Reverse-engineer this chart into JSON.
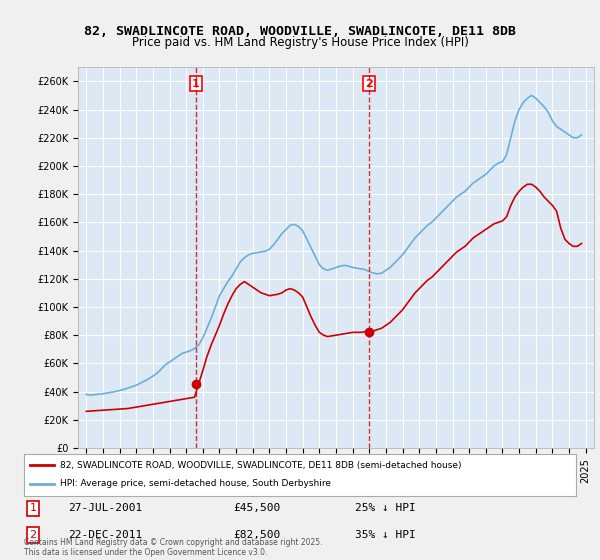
{
  "title": "82, SWADLINCOTE ROAD, WOODVILLE, SWADLINCOTE, DE11 8DB",
  "subtitle": "Price paid vs. HM Land Registry's House Price Index (HPI)",
  "bg_color": "#dce9f5",
  "plot_bg_color": "#dce9f5",
  "grid_color": "#ffffff",
  "hpi_color": "#6baed6",
  "price_color": "#cc0000",
  "marker_color": "#cc0000",
  "ylim": [
    0,
    270000
  ],
  "yticks": [
    0,
    20000,
    40000,
    60000,
    80000,
    100000,
    120000,
    140000,
    160000,
    180000,
    200000,
    220000,
    240000,
    260000
  ],
  "xlim_start": 1994.5,
  "xlim_end": 2025.5,
  "xticks": [
    1995,
    1996,
    1997,
    1998,
    1999,
    2000,
    2001,
    2002,
    2003,
    2004,
    2005,
    2006,
    2007,
    2008,
    2009,
    2010,
    2011,
    2012,
    2013,
    2014,
    2015,
    2016,
    2017,
    2018,
    2019,
    2020,
    2021,
    2022,
    2023,
    2024,
    2025
  ],
  "transaction1": {
    "date": "27-JUL-2001",
    "price": 45500,
    "label": "1",
    "x": 2001.57,
    "hpi_pct": "25% ↓ HPI"
  },
  "transaction2": {
    "date": "22-DEC-2011",
    "price": 82500,
    "label": "2",
    "x": 2011.98,
    "hpi_pct": "35% ↓ HPI"
  },
  "legend_line1": "82, SWADLINCOTE ROAD, WOODVILLE, SWADLINCOTE, DE11 8DB (semi-detached house)",
  "legend_line2": "HPI: Average price, semi-detached house, South Derbyshire",
  "footnote": "Contains HM Land Registry data © Crown copyright and database right 2025.\nThis data is licensed under the Open Government Licence v3.0.",
  "hpi_data_x": [
    1995.0,
    1995.25,
    1995.5,
    1995.75,
    1996.0,
    1996.25,
    1996.5,
    1996.75,
    1997.0,
    1997.25,
    1997.5,
    1997.75,
    1998.0,
    1998.25,
    1998.5,
    1998.75,
    1999.0,
    1999.25,
    1999.5,
    1999.75,
    2000.0,
    2000.25,
    2000.5,
    2000.75,
    2001.0,
    2001.25,
    2001.5,
    2001.75,
    2002.0,
    2002.25,
    2002.5,
    2002.75,
    2003.0,
    2003.25,
    2003.5,
    2003.75,
    2004.0,
    2004.25,
    2004.5,
    2004.75,
    2005.0,
    2005.25,
    2005.5,
    2005.75,
    2006.0,
    2006.25,
    2006.5,
    2006.75,
    2007.0,
    2007.25,
    2007.5,
    2007.75,
    2008.0,
    2008.25,
    2008.5,
    2008.75,
    2009.0,
    2009.25,
    2009.5,
    2009.75,
    2010.0,
    2010.25,
    2010.5,
    2010.75,
    2011.0,
    2011.25,
    2011.5,
    2011.75,
    2012.0,
    2012.25,
    2012.5,
    2012.75,
    2013.0,
    2013.25,
    2013.5,
    2013.75,
    2014.0,
    2014.25,
    2014.5,
    2014.75,
    2015.0,
    2015.25,
    2015.5,
    2015.75,
    2016.0,
    2016.25,
    2016.5,
    2016.75,
    2017.0,
    2017.25,
    2017.5,
    2017.75,
    2018.0,
    2018.25,
    2018.5,
    2018.75,
    2019.0,
    2019.25,
    2019.5,
    2019.75,
    2020.0,
    2020.25,
    2020.5,
    2020.75,
    2021.0,
    2021.25,
    2021.5,
    2021.75,
    2022.0,
    2022.25,
    2022.5,
    2022.75,
    2023.0,
    2023.25,
    2023.5,
    2023.75,
    2024.0,
    2024.25,
    2024.5,
    2024.75
  ],
  "hpi_data_y": [
    38000,
    37500,
    37800,
    38200,
    38500,
    39000,
    39500,
    40000,
    40800,
    41500,
    42500,
    43500,
    44500,
    46000,
    47500,
    49000,
    51000,
    53000,
    56000,
    59000,
    61000,
    63000,
    65000,
    67000,
    68000,
    69000,
    70500,
    73000,
    78000,
    85000,
    92000,
    100000,
    108000,
    113000,
    118000,
    122000,
    127000,
    132000,
    135000,
    137000,
    138000,
    138500,
    139000,
    139500,
    141000,
    144000,
    148000,
    152000,
    155000,
    158000,
    158500,
    157000,
    154000,
    148000,
    142000,
    136000,
    130000,
    127000,
    126000,
    127000,
    128000,
    129000,
    129500,
    129000,
    128000,
    127500,
    127000,
    126500,
    125000,
    124000,
    123500,
    124000,
    126000,
    128000,
    131000,
    134000,
    137000,
    141000,
    145000,
    149000,
    152000,
    155000,
    158000,
    160000,
    163000,
    166000,
    169000,
    172000,
    175000,
    178000,
    180000,
    182000,
    185000,
    188000,
    190000,
    192000,
    194000,
    197000,
    200000,
    202000,
    203000,
    208000,
    220000,
    232000,
    240000,
    245000,
    248000,
    250000,
    248000,
    245000,
    242000,
    238000,
    232000,
    228000,
    226000,
    224000,
    222000,
    220000,
    220000,
    222000
  ],
  "price_data_x": [
    1995.0,
    1995.25,
    1995.5,
    1995.75,
    1996.0,
    1996.25,
    1996.5,
    1996.75,
    1997.0,
    1997.25,
    1997.5,
    1997.75,
    1998.0,
    1998.25,
    1998.5,
    1998.75,
    1999.0,
    1999.25,
    1999.5,
    1999.75,
    2000.0,
    2000.25,
    2000.5,
    2000.75,
    2001.0,
    2001.25,
    2001.5,
    2001.75,
    2002.0,
    2002.25,
    2002.5,
    2002.75,
    2003.0,
    2003.25,
    2003.5,
    2003.75,
    2004.0,
    2004.25,
    2004.5,
    2004.75,
    2005.0,
    2005.25,
    2005.5,
    2005.75,
    2006.0,
    2006.25,
    2006.5,
    2006.75,
    2007.0,
    2007.25,
    2007.5,
    2007.75,
    2008.0,
    2008.25,
    2008.5,
    2008.75,
    2009.0,
    2009.25,
    2009.5,
    2009.75,
    2010.0,
    2010.25,
    2010.5,
    2010.75,
    2011.0,
    2011.25,
    2011.5,
    2011.75,
    2012.0,
    2012.25,
    2012.5,
    2012.75,
    2013.0,
    2013.25,
    2013.5,
    2013.75,
    2014.0,
    2014.25,
    2014.5,
    2014.75,
    2015.0,
    2015.25,
    2015.5,
    2015.75,
    2016.0,
    2016.25,
    2016.5,
    2016.75,
    2017.0,
    2017.25,
    2017.5,
    2017.75,
    2018.0,
    2018.25,
    2018.5,
    2018.75,
    2019.0,
    2019.25,
    2019.5,
    2019.75,
    2020.0,
    2020.25,
    2020.5,
    2020.75,
    2021.0,
    2021.25,
    2021.5,
    2021.75,
    2022.0,
    2022.25,
    2022.5,
    2022.75,
    2023.0,
    2023.25,
    2023.5,
    2023.75,
    2024.0,
    2024.25,
    2024.5,
    2024.75
  ],
  "price_data_y": [
    26000,
    26200,
    26400,
    26600,
    26800,
    27000,
    27200,
    27400,
    27600,
    27800,
    28000,
    28500,
    29000,
    29500,
    30000,
    30500,
    31000,
    31500,
    32000,
    32500,
    33000,
    33500,
    34000,
    34500,
    35000,
    35500,
    36000,
    45500,
    55000,
    65000,
    73000,
    80000,
    87000,
    95000,
    102000,
    108000,
    113000,
    116000,
    118000,
    116000,
    114000,
    112000,
    110000,
    109000,
    108000,
    108500,
    109000,
    110000,
    112000,
    113000,
    112000,
    110000,
    107000,
    100000,
    93000,
    87000,
    82000,
    80000,
    79000,
    79500,
    80000,
    80500,
    81000,
    81500,
    82000,
    82000,
    82000,
    82500,
    82500,
    83000,
    84000,
    85000,
    87000,
    89000,
    92000,
    95000,
    98000,
    102000,
    106000,
    110000,
    113000,
    116000,
    119000,
    121000,
    124000,
    127000,
    130000,
    133000,
    136000,
    139000,
    141000,
    143000,
    146000,
    149000,
    151000,
    153000,
    155000,
    157000,
    159000,
    160000,
    161000,
    164000,
    172000,
    178000,
    182000,
    185000,
    187000,
    187000,
    185000,
    182000,
    178000,
    175000,
    172000,
    168000,
    156000,
    148000,
    145000,
    143000,
    143000,
    145000
  ]
}
